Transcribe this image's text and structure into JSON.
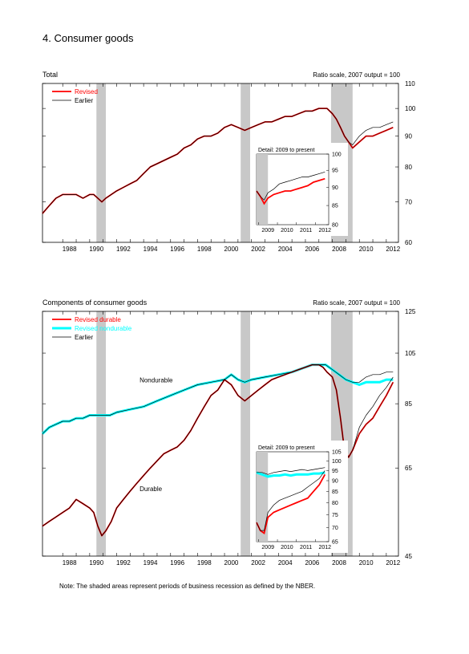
{
  "page_title": "4. Consumer goods",
  "note": "Note: The shaded areas represent periods of business recession as defined by the NBER.",
  "colors": {
    "revised": "#ff0000",
    "earlier": "#000000",
    "revised_durable": "#ff0000",
    "revised_nondurable": "#00ffff",
    "recession_shade": "#c8c8c8",
    "line_dark": "#7a0000"
  },
  "chart_data": [
    {
      "type": "line",
      "title": "Total",
      "subtitle": "Ratio scale, 2007 output = 100",
      "scale": "log",
      "xlim": [
        1986.5,
        2012.9
      ],
      "ylim": [
        60,
        110
      ],
      "x_ticks": [
        "1988",
        "1990",
        "1992",
        "1994",
        "1996",
        "1998",
        "2000",
        "2002",
        "2004",
        "2006",
        "2008",
        "2010",
        "2012"
      ],
      "y_ticks": [
        60,
        70,
        80,
        90,
        100,
        110
      ],
      "legend": {
        "position": "top-left",
        "entries": [
          "Revised",
          "Earlier"
        ]
      },
      "recessions": [
        [
          1990.5,
          1991.2
        ],
        [
          2001.2,
          2001.9
        ],
        [
          2007.9,
          2009.5
        ]
      ],
      "series": [
        {
          "name": "Revised",
          "x": [
            1986.5,
            1987,
            1987.5,
            1988,
            1988.5,
            1989,
            1989.5,
            1990,
            1990.3,
            1990.6,
            1990.9,
            1991.2,
            1991.6,
            1992,
            1992.5,
            1993,
            1993.5,
            1994,
            1994.5,
            1995,
            1995.5,
            1996,
            1996.5,
            1997,
            1997.5,
            1998,
            1998.5,
            1999,
            1999.5,
            2000,
            2000.5,
            2001,
            2001.5,
            2002,
            2002.5,
            2003,
            2003.5,
            2004,
            2004.5,
            2005,
            2005.5,
            2006,
            2006.5,
            2007,
            2007.3,
            2007.6,
            2008,
            2008.3,
            2008.6,
            2008.9,
            2009.2,
            2009.5,
            2010,
            2010.5,
            2011,
            2011.5,
            2012,
            2012.5
          ],
          "y": [
            67,
            69,
            71,
            72,
            72,
            72,
            71,
            72,
            72,
            71,
            70,
            71,
            72,
            73,
            74,
            75,
            76,
            78,
            80,
            81,
            82,
            83,
            84,
            86,
            87,
            89,
            90,
            90,
            91,
            93,
            94,
            93,
            92,
            93,
            94,
            95,
            95,
            96,
            97,
            97,
            98,
            99,
            99,
            100,
            100,
            100,
            98,
            96,
            93,
            90,
            88,
            86,
            88,
            90,
            90,
            91,
            92,
            93
          ]
        },
        {
          "name": "Earlier",
          "x": [
            1986.5,
            1987,
            1987.5,
            1988,
            1988.5,
            1989,
            1989.5,
            1990,
            1990.3,
            1990.6,
            1990.9,
            1991.2,
            1991.6,
            1992,
            1992.5,
            1993,
            1993.5,
            1994,
            1994.5,
            1995,
            1995.5,
            1996,
            1996.5,
            1997,
            1997.5,
            1998,
            1998.5,
            1999,
            1999.5,
            2000,
            2000.5,
            2001,
            2001.5,
            2002,
            2002.5,
            2003,
            2003.5,
            2004,
            2004.5,
            2005,
            2005.5,
            2006,
            2006.5,
            2007,
            2007.3,
            2007.6,
            2008,
            2008.3,
            2008.6,
            2008.9,
            2009.2,
            2009.5,
            2010,
            2010.5,
            2011,
            2011.5,
            2012,
            2012.5
          ],
          "y": [
            67,
            69,
            71,
            72,
            72,
            72,
            71,
            72,
            72,
            71,
            70,
            71,
            72,
            73,
            74,
            75,
            76,
            78,
            80,
            81,
            82,
            83,
            84,
            86,
            87,
            89,
            90,
            90,
            91,
            93,
            94,
            93,
            92,
            93,
            94,
            95,
            95,
            96,
            97,
            97,
            98,
            99,
            99,
            100,
            100,
            100,
            98,
            96,
            93,
            90,
            88,
            87,
            90,
            92,
            93,
            93,
            94,
            95
          ]
        }
      ],
      "inset": {
        "title": "Detail: 2009 to present",
        "xlim": [
          2008.9,
          2012.7
        ],
        "ylim": [
          80,
          100
        ],
        "x_ticks": [
          "2009",
          "2010",
          "2011",
          "2012"
        ],
        "y_ticks": [
          80,
          85,
          90,
          95,
          100
        ],
        "series": [
          {
            "name": "Revised",
            "x": [
              2008.9,
              2009.1,
              2009.3,
              2009.5,
              2009.8,
              2010.1,
              2010.4,
              2010.7,
              2011,
              2011.3,
              2011.6,
              2011.9,
              2012.2,
              2012.5
            ],
            "y": [
              89,
              87.5,
              85.5,
              87,
              88,
              88.5,
              89,
              89,
              89.5,
              90,
              90.5,
              91.5,
              92,
              92.5
            ]
          },
          {
            "name": "Earlier",
            "x": [
              2008.9,
              2009.1,
              2009.3,
              2009.5,
              2009.8,
              2010.1,
              2010.4,
              2010.7,
              2011,
              2011.3,
              2011.6,
              2011.9,
              2012.2,
              2012.5
            ],
            "y": [
              89,
              87.5,
              86.5,
              88.5,
              89.5,
              91,
              91.5,
              92,
              92.5,
              93,
              93,
              93.5,
              94,
              94.5
            ]
          }
        ]
      }
    },
    {
      "type": "line",
      "title": "Components of consumer goods",
      "subtitle": "Ratio scale, 2007 output = 100",
      "scale": "log",
      "xlim": [
        1986.5,
        2012.9
      ],
      "ylim": [
        45,
        125
      ],
      "x_ticks": [
        "1988",
        "1990",
        "1992",
        "1994",
        "1996",
        "1998",
        "2000",
        "2002",
        "2004",
        "2006",
        "2008",
        "2010",
        "2012"
      ],
      "y_ticks": [
        45,
        65,
        85,
        105,
        125
      ],
      "legend": {
        "position": "top-left",
        "entries": [
          "Revised durable",
          "Revised nondurable",
          "Earlier"
        ]
      },
      "annotations": [
        "Nondurable",
        "Durable"
      ],
      "recessions": [
        [
          1990.5,
          1991.2
        ],
        [
          2001.2,
          2001.9
        ],
        [
          2007.9,
          2009.5
        ]
      ],
      "series": [
        {
          "name": "Revised nondurable",
          "x": [
            1986.5,
            1987,
            1987.5,
            1988,
            1988.5,
            1989,
            1989.5,
            1990,
            1990.5,
            1991,
            1991.5,
            1992,
            1993,
            1994,
            1995,
            1996,
            1997,
            1998,
            1999,
            2000,
            2000.5,
            2001,
            2001.5,
            2002,
            2003,
            2004,
            2005,
            2006,
            2006.5,
            2007,
            2007.5,
            2008,
            2008.5,
            2009,
            2009.5,
            2010,
            2010.5,
            2011,
            2011.5,
            2012,
            2012.5
          ],
          "y": [
            75,
            77,
            78,
            79,
            79,
            80,
            80,
            81,
            81,
            81,
            81,
            82,
            83,
            84,
            86,
            88,
            90,
            92,
            93,
            94,
            96,
            94,
            93,
            94,
            95,
            96,
            97,
            99,
            100,
            100,
            100,
            98,
            96,
            94,
            93,
            92,
            93,
            93,
            93,
            94,
            94
          ]
        },
        {
          "name": "Revised durable",
          "x": [
            1986.5,
            1987,
            1987.5,
            1988,
            1988.5,
            1989,
            1989.5,
            1990,
            1990.3,
            1990.6,
            1990.9,
            1991.2,
            1991.6,
            1992,
            1992.5,
            1993,
            1993.5,
            1994,
            1994.5,
            1995,
            1995.5,
            1996,
            1996.5,
            1997,
            1997.5,
            1998,
            1998.5,
            1999,
            1999.5,
            2000,
            2000.5,
            2001,
            2001.5,
            2002,
            2002.5,
            2003,
            2003.5,
            2004,
            2004.5,
            2005,
            2005.5,
            2006,
            2006.5,
            2007,
            2007.3,
            2007.6,
            2008,
            2008.3,
            2008.6,
            2008.9,
            2009.2,
            2009.5,
            2010,
            2010.5,
            2011,
            2011.5,
            2012,
            2012.5
          ],
          "y": [
            51,
            52,
            53,
            54,
            55,
            57,
            56,
            55,
            54,
            51,
            49,
            50,
            52,
            55,
            57,
            59,
            61,
            63,
            65,
            67,
            69,
            70,
            71,
            73,
            76,
            80,
            84,
            88,
            90,
            94,
            92,
            88,
            86,
            88,
            90,
            92,
            94,
            95,
            96,
            97,
            98,
            99,
            100,
            100,
            99,
            97,
            95,
            90,
            80,
            70,
            68,
            70,
            75,
            78,
            80,
            84,
            88,
            93
          ]
        },
        {
          "name": "Earlier",
          "x": [
            1986.5,
            1987,
            1987.5,
            1988,
            1988.5,
            1989,
            1989.5,
            1990,
            1990.3,
            1990.6,
            1990.9,
            1991.2,
            1991.6,
            1992,
            1992.5,
            1993,
            1993.5,
            1994,
            1994.5,
            1995,
            1995.5,
            1996,
            1996.5,
            1997,
            1997.5,
            1998,
            1998.5,
            1999,
            1999.5,
            2000,
            2000.5,
            2001,
            2001.5,
            2002,
            2002.5,
            2003,
            2003.5,
            2004,
            2004.5,
            2005,
            2005.5,
            2006,
            2006.5,
            2007,
            2007.3,
            2007.6,
            2008,
            2008.3,
            2008.6,
            2008.9,
            2009.2,
            2009.5,
            2010,
            2010.5,
            2011,
            2011.5,
            2012,
            2012.5
          ],
          "y": [
            51,
            52,
            53,
            54,
            55,
            57,
            56,
            55,
            54,
            51,
            49,
            50,
            52,
            55,
            57,
            59,
            61,
            63,
            65,
            67,
            69,
            70,
            71,
            73,
            76,
            80,
            84,
            88,
            90,
            94,
            92,
            88,
            86,
            88,
            90,
            92,
            94,
            95,
            96,
            97,
            98,
            99,
            100,
            100,
            99,
            97,
            95,
            90,
            80,
            70,
            68,
            70,
            77,
            81,
            84,
            88,
            91,
            95
          ]
        },
        {
          "name": "Earlier",
          "x": [
            1986.5,
            1987,
            1987.5,
            1988,
            1988.5,
            1989,
            1989.5,
            1990,
            1990.5,
            1991,
            1991.5,
            1992,
            1993,
            1994,
            1995,
            1996,
            1997,
            1998,
            1999,
            2000,
            2000.5,
            2001,
            2001.5,
            2002,
            2003,
            2004,
            2005,
            2006,
            2006.5,
            2007,
            2007.5,
            2008,
            2008.5,
            2009,
            2009.5,
            2010,
            2010.5,
            2011,
            2011.5,
            2012,
            2012.5
          ],
          "y": [
            75,
            77,
            78,
            79,
            79,
            80,
            80,
            81,
            81,
            81,
            81,
            82,
            83,
            84,
            86,
            88,
            90,
            92,
            93,
            94,
            96,
            94,
            93,
            94,
            95,
            96,
            97,
            99,
            100,
            100,
            100,
            98,
            96,
            94,
            93,
            93,
            95,
            96,
            96,
            97,
            97
          ]
        }
      ],
      "inset": {
        "title": "Detail: 2009 to present",
        "xlim": [
          2008.9,
          2012.7
        ],
        "ylim": [
          65,
          105
        ],
        "x_ticks": [
          "2009",
          "2010",
          "2011",
          "2012"
        ],
        "y_ticks": [
          65,
          70,
          75,
          80,
          85,
          90,
          95,
          100,
          105
        ],
        "series": [
          {
            "name": "Revised nondurable",
            "x": [
              2008.9,
              2009.2,
              2009.5,
              2009.8,
              2010.1,
              2010.4,
              2010.7,
              2011,
              2011.3,
              2011.6,
              2011.9,
              2012.2,
              2012.5
            ],
            "y": [
              94,
              93,
              92,
              92.5,
              92.5,
              93,
              92.5,
              93,
              93,
              93,
              93.5,
              93.5,
              94
            ]
          },
          {
            "name": "Revised durable",
            "x": [
              2008.9,
              2009.1,
              2009.3,
              2009.5,
              2009.8,
              2010.1,
              2010.4,
              2010.7,
              2011,
              2011.3,
              2011.6,
              2011.9,
              2012.2,
              2012.5
            ],
            "y": [
              72,
              69,
              68,
              74,
              76,
              77,
              78,
              79,
              80,
              81,
              82,
              85,
              88,
              93
            ]
          },
          {
            "name": "Earlier",
            "x": [
              2008.9,
              2009.1,
              2009.3,
              2009.5,
              2009.8,
              2010.1,
              2010.4,
              2010.7,
              2011,
              2011.3,
              2011.6,
              2011.9,
              2012.2,
              2012.5
            ],
            "y": [
              72,
              69,
              69,
              76,
              79,
              81,
              82,
              83,
              84,
              85,
              87,
              89,
              91,
              95
            ]
          },
          {
            "name": "Earlier",
            "x": [
              2008.9,
              2009.2,
              2009.5,
              2009.8,
              2010.1,
              2010.4,
              2010.7,
              2011,
              2011.3,
              2011.6,
              2011.9,
              2012.2,
              2012.5
            ],
            "y": [
              94,
              94,
              93,
              94,
              94.5,
              95,
              94.5,
              95,
              95.5,
              95,
              95.5,
              96,
              96.5
            ]
          }
        ]
      }
    }
  ]
}
